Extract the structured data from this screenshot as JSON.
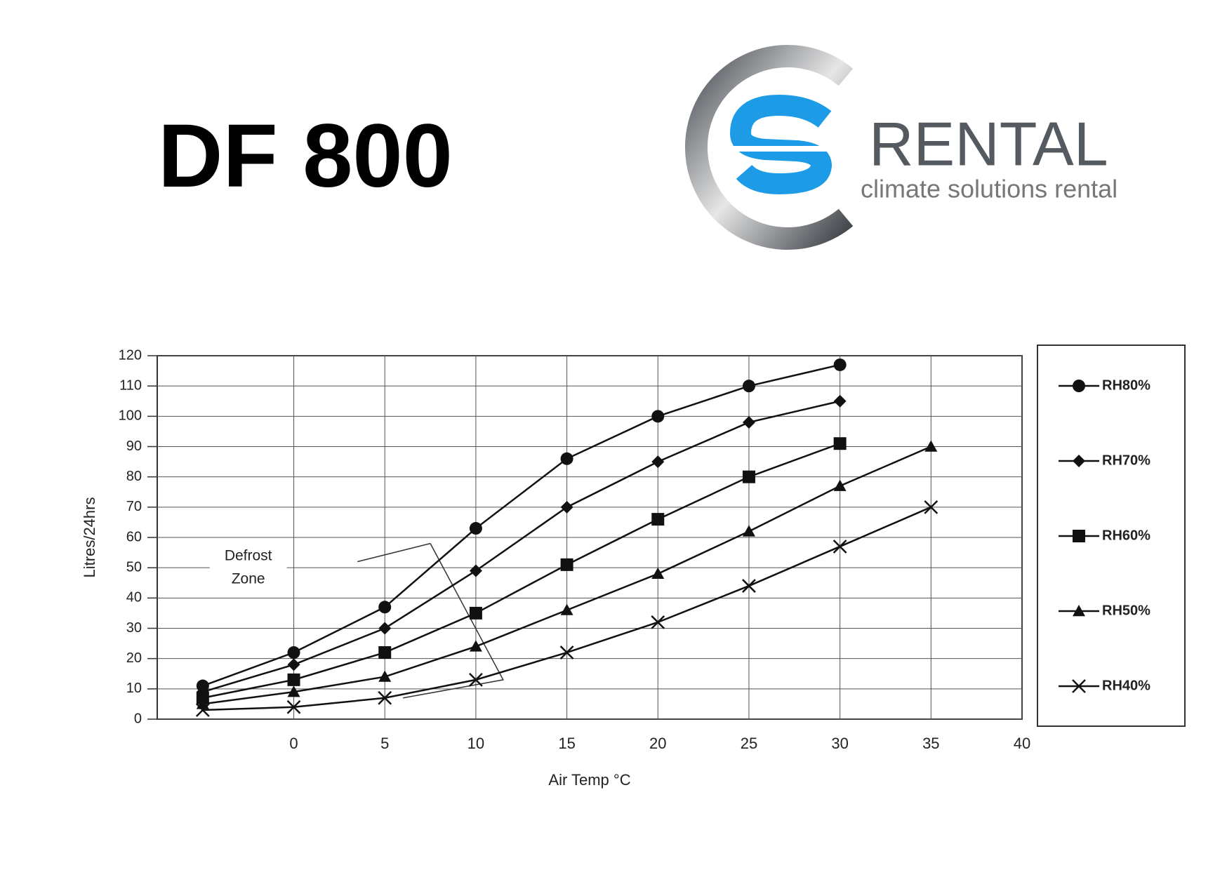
{
  "header": {
    "title": "DF 800",
    "logo_name": "RENTAL",
    "logo_tagline": "climate solutions rental"
  },
  "chart_data": {
    "type": "line",
    "x_label": "Air Temp °C",
    "y_label": "Litres/24hrs",
    "annotation": [
      "Defrost",
      "Zone"
    ],
    "x": [
      -5,
      0,
      5,
      10,
      15,
      20,
      25,
      30,
      35
    ],
    "series": [
      {
        "name": "RH80%",
        "color": "#111111",
        "marker": "circle",
        "values": [
          11,
          22,
          37,
          63,
          86,
          100,
          110,
          117,
          null
        ]
      },
      {
        "name": "RH70%",
        "color": "#111111",
        "marker": "diamond",
        "values": [
          9,
          18,
          30,
          49,
          70,
          85,
          98,
          105,
          null
        ]
      },
      {
        "name": "RH60%",
        "color": "#111111",
        "marker": "square",
        "values": [
          7,
          13,
          22,
          35,
          51,
          66,
          80,
          91,
          null
        ]
      },
      {
        "name": "RH50%",
        "color": "#111111",
        "marker": "triangle",
        "values": [
          5,
          9,
          14,
          24,
          36,
          48,
          62,
          77,
          90
        ]
      },
      {
        "name": "RH40%",
        "color": "#111111",
        "marker": "x",
        "values": [
          3,
          4,
          7,
          13,
          22,
          32,
          44,
          57,
          70
        ]
      }
    ],
    "xlim": [
      -7.5,
      40
    ],
    "xticks": [
      0,
      5,
      10,
      15,
      20,
      25,
      30,
      35,
      40
    ],
    "ylim": [
      0,
      120
    ],
    "yticks": [
      0,
      10,
      20,
      30,
      40,
      50,
      60,
      70,
      80,
      90,
      100,
      110,
      120
    ],
    "grid": true,
    "legend": "right"
  }
}
